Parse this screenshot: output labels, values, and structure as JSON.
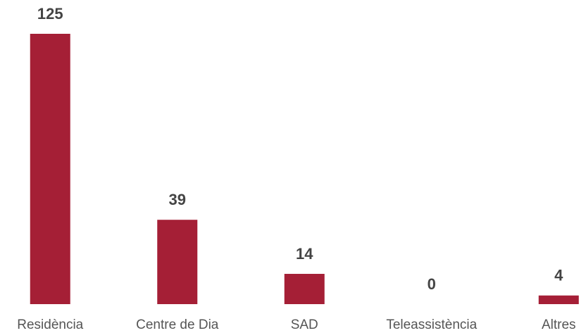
{
  "chart_data": {
    "type": "bar",
    "categories": [
      "Residència",
      "Centre de Dia",
      "SAD",
      "Teleassistència",
      "Altres"
    ],
    "values": [
      125,
      39,
      14,
      0,
      4
    ],
    "color": "#a51f36"
  }
}
